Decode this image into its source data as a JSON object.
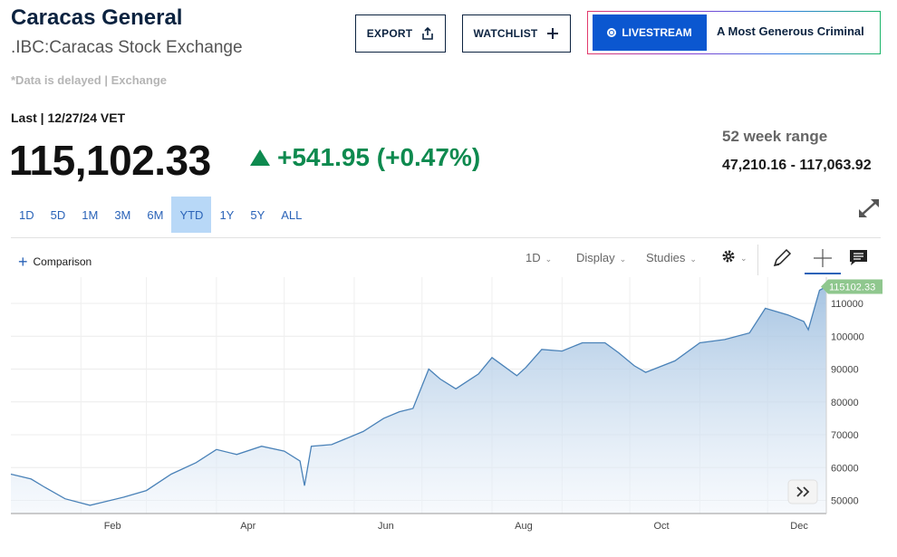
{
  "header": {
    "title": "Caracas General",
    "subtitle": ".IBC:Caracas Stock Exchange",
    "delay_note": "*Data is delayed | Exchange"
  },
  "actions": {
    "export_label": "EXPORT",
    "watchlist_label": "WATCHLIST",
    "livestream_label": "LIVESTREAM",
    "show_title": "A Most Generous Criminal"
  },
  "quote": {
    "last_label": "Last | 12/27/24 VET",
    "price": "115,102.33",
    "change": "+541.95 (+0.47%)",
    "change_color": "#0e8a4f",
    "range_label": "52 week range",
    "range_value": "47,210.16 - 117,063.92"
  },
  "periods": [
    {
      "label": "1D",
      "active": false
    },
    {
      "label": "5D",
      "active": false
    },
    {
      "label": "1M",
      "active": false
    },
    {
      "label": "3M",
      "active": false
    },
    {
      "label": "6M",
      "active": false
    },
    {
      "label": "YTD",
      "active": true
    },
    {
      "label": "1Y",
      "active": false
    },
    {
      "label": "5Y",
      "active": false
    },
    {
      "label": "ALL",
      "active": false
    }
  ],
  "toolbar": {
    "comparison_label": "Comparison",
    "interval_label": "1D",
    "display_label": "Display",
    "studies_label": "Studies",
    "icons": [
      "gear-icon",
      "pencil-icon",
      "crosshair-icon",
      "comment-icon"
    ]
  },
  "chart_data": {
    "type": "area",
    "title": "",
    "xlabel": "",
    "ylabel": "",
    "x_ticks": [
      "Feb",
      "Apr",
      "Jun",
      "Aug",
      "Oct",
      "Dec"
    ],
    "y_ticks": [
      50000,
      60000,
      70000,
      80000,
      90000,
      100000,
      110000
    ],
    "ylim": [
      46000,
      118000
    ],
    "xlim": [
      "2024-01-01",
      "2024-12-27"
    ],
    "last_value_label": "115102.33",
    "grid": true,
    "line_color": "#4a82b8",
    "series": [
      {
        "x": [
          "2024-01-01",
          "2024-01-10",
          "2024-01-16",
          "2024-01-25",
          "2024-02-05",
          "2024-02-20",
          "2024-03-01",
          "2024-03-12",
          "2024-03-23",
          "2024-04-01",
          "2024-04-10",
          "2024-04-21",
          "2024-05-01",
          "2024-05-08",
          "2024-05-10",
          "2024-05-13",
          "2024-05-22",
          "2024-06-05",
          "2024-06-14",
          "2024-06-21",
          "2024-06-27",
          "2024-07-04",
          "2024-07-09",
          "2024-07-16",
          "2024-07-26",
          "2024-08-01",
          "2024-08-12",
          "2024-08-16",
          "2024-08-23",
          "2024-09-01",
          "2024-09-10",
          "2024-09-20",
          "2024-09-26",
          "2024-10-03",
          "2024-10-08",
          "2024-10-21",
          "2024-11-01",
          "2024-11-12",
          "2024-11-23",
          "2024-11-30",
          "2024-12-10",
          "2024-12-17",
          "2024-12-19",
          "2024-12-24",
          "2024-12-27"
        ],
        "values": [
          58000,
          56500,
          54000,
          50500,
          48500,
          51000,
          53000,
          58000,
          61500,
          65500,
          64000,
          66500,
          65000,
          62000,
          54500,
          66500,
          67000,
          71000,
          75000,
          77000,
          78000,
          90000,
          87000,
          84000,
          88500,
          93500,
          88000,
          90500,
          96000,
          95500,
          98000,
          98000,
          95000,
          91000,
          89000,
          92500,
          98000,
          99000,
          101000,
          108500,
          106500,
          104500,
          102000,
          114000,
          115102.33
        ]
      }
    ]
  }
}
